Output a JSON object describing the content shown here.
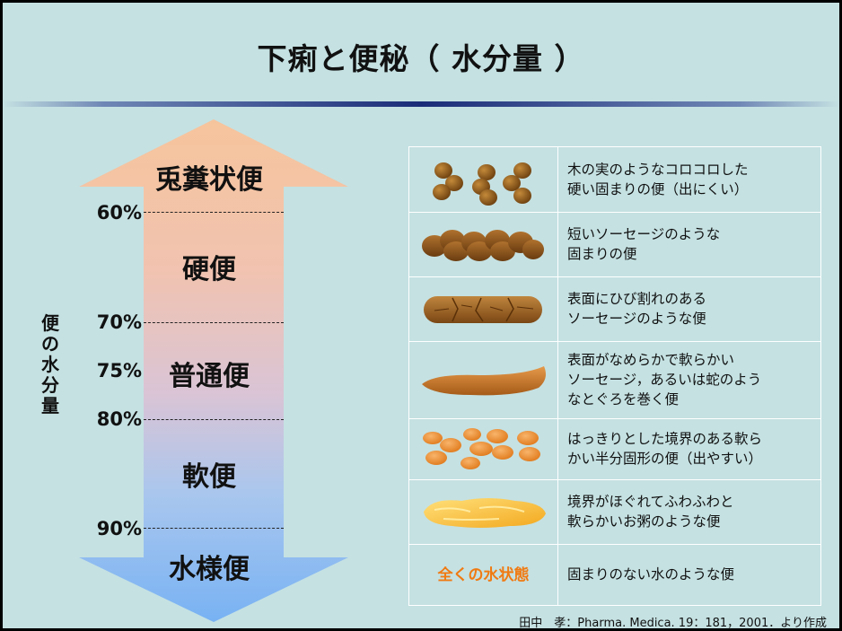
{
  "title": "下痢と便秘（ 水分量 ）",
  "vertical_label": [
    "便",
    "の",
    "水",
    "分",
    "量"
  ],
  "zones": {
    "z1": "兎糞状便",
    "z2": "硬便",
    "z3": "普通便",
    "z4": "軟便",
    "z5": "水様便"
  },
  "percentages": {
    "p60": "60%",
    "p70": "70%",
    "p75": "75%",
    "p80": "80%",
    "p90": "90%"
  },
  "arrow_colors": {
    "top": "#f6c7a0",
    "bottom": "#7fb6f0"
  },
  "table": {
    "rows": [
      {
        "image": "small-round-pellets",
        "desc": [
          "木の実のようなコロコロした",
          "硬い固まりの便（出にくい）"
        ]
      },
      {
        "image": "lumpy-sausage",
        "desc": [
          "短いソーセージのような",
          "固まりの便"
        ]
      },
      {
        "image": "cracked-sausage",
        "desc": [
          "表面にひび割れのある",
          "ソーセージのような便"
        ]
      },
      {
        "image": "smooth-sausage",
        "desc": [
          "表面がなめらかで軟らかい",
          "ソーセージ，あるいは蛇のよう",
          "なとぐろを巻く便"
        ]
      },
      {
        "image": "soft-blobs",
        "desc": [
          "はっきりとした境界のある軟ら",
          "かい半分固形の便（出やすい）"
        ]
      },
      {
        "image": "fluffy-mushy",
        "desc": [
          "境界がほぐれてふわふわと",
          "軟らかいお粥のような便"
        ]
      },
      {
        "image_label": "全くの水状態",
        "desc": [
          "固まりのない水のような便"
        ]
      }
    ]
  },
  "footer": "田中　孝：Pharma. Medica. 19：181，2001．より作成"
}
